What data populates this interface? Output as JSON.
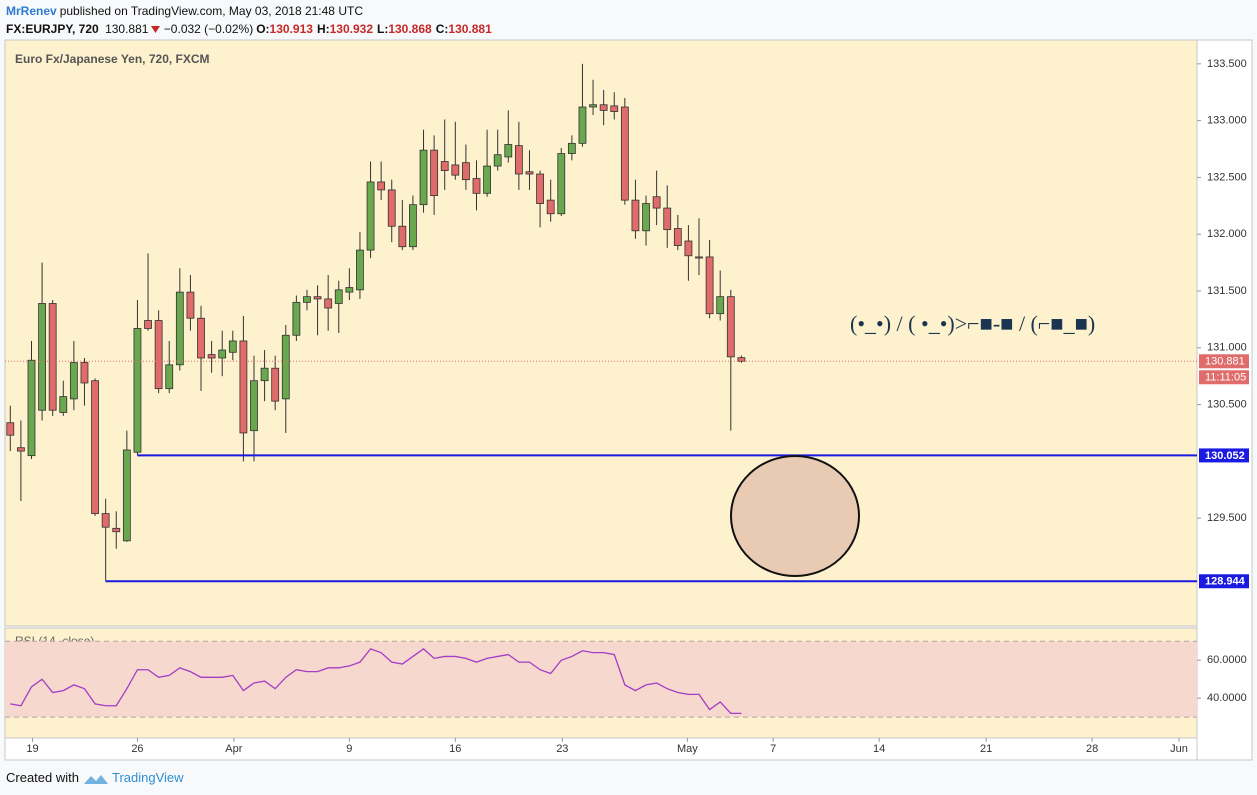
{
  "header": {
    "author": "MrRenev",
    "published": "published on TradingView.com, May 03, 2018 21:48 UTC",
    "symbol": "FX:EURJPY, 720",
    "price": 130.881,
    "change": "−0.032 (−0.02%)",
    "ohlc": [
      {
        "label": "O:",
        "value": 130.913
      },
      {
        "label": "H:",
        "value": 130.932
      },
      {
        "label": "L:",
        "value": 130.868
      },
      {
        "label": "C:",
        "value": 130.881
      }
    ]
  },
  "chart_data": [
    {
      "type": "candlestick",
      "title": "Euro Fx/Japanese Yen, 720, FXCM",
      "up_color": "#69a84f",
      "down_color": "#e06b6b",
      "open": [
        130.34,
        130.12,
        130.05,
        130.45,
        131.39,
        130.43,
        130.55,
        130.87,
        130.71,
        129.54,
        129.41,
        129.3,
        130.08,
        131.24,
        131.24,
        130.64,
        130.85,
        131.49,
        131.26,
        130.94,
        130.91,
        130.96,
        131.06,
        130.27,
        130.71,
        130.82,
        130.55,
        131.11,
        131.4,
        131.45,
        131.43,
        131.39,
        131.49,
        131.51,
        131.86,
        132.46,
        132.39,
        132.07,
        131.89,
        132.26,
        132.74,
        132.64,
        132.61,
        132.63,
        132.49,
        132.36,
        132.6,
        132.68,
        132.78,
        132.55,
        132.53,
        132.3,
        132.18,
        132.71,
        132.8,
        133.12,
        133.14,
        133.13,
        133.12,
        132.3,
        132.03,
        132.33,
        132.23,
        132.05,
        131.94,
        131.8,
        131.8,
        131.3,
        131.45,
        130.913
      ],
      "high": [
        130.49,
        130.36,
        131.06,
        131.75,
        131.42,
        130.71,
        131.06,
        130.91,
        130.73,
        129.67,
        129.56,
        130.27,
        131.42,
        131.83,
        131.33,
        131.06,
        131.7,
        131.64,
        131.37,
        131.06,
        131.15,
        131.15,
        131.28,
        130.93,
        130.98,
        130.93,
        131.2,
        131.46,
        131.51,
        131.55,
        131.64,
        131.59,
        131.7,
        132.02,
        132.64,
        132.64,
        132.48,
        132.3,
        132.34,
        132.92,
        132.87,
        133.01,
        132.99,
        132.79,
        132.65,
        132.92,
        132.92,
        133.09,
        132.99,
        132.74,
        132.56,
        132.48,
        132.76,
        132.87,
        133.5,
        133.36,
        133.27,
        133.25,
        133.2,
        132.48,
        132.34,
        132.56,
        132.43,
        132.17,
        132.08,
        132.14,
        131.95,
        131.68,
        131.51,
        130.932
      ],
      "low": [
        130.09,
        129.65,
        130.02,
        130.36,
        130.4,
        130.4,
        130.45,
        130.49,
        129.52,
        128.944,
        129.23,
        129.29,
        130.052,
        131.15,
        130.6,
        130.6,
        130.8,
        131.15,
        130.62,
        130.78,
        130.75,
        130.89,
        130.0,
        130.0,
        130.53,
        130.45,
        130.25,
        131.06,
        131.33,
        131.11,
        131.15,
        131.13,
        131.42,
        131.43,
        131.79,
        132.3,
        131.93,
        131.86,
        131.86,
        132.19,
        132.17,
        132.39,
        132.48,
        132.39,
        132.21,
        132.33,
        132.56,
        132.63,
        132.39,
        132.39,
        132.06,
        132.11,
        132.16,
        132.65,
        132.77,
        133.05,
        132.96,
        133.01,
        132.26,
        131.96,
        131.9,
        132.08,
        131.88,
        131.86,
        131.59,
        131.64,
        131.26,
        131.24,
        130.27,
        130.868
      ],
      "close": [
        130.23,
        130.09,
        130.89,
        131.39,
        130.45,
        130.57,
        130.87,
        130.69,
        129.54,
        129.42,
        129.38,
        130.1,
        131.17,
        131.17,
        130.64,
        130.85,
        131.49,
        131.26,
        130.91,
        130.91,
        130.98,
        131.06,
        130.25,
        130.71,
        130.82,
        130.53,
        131.11,
        131.4,
        131.45,
        131.43,
        131.35,
        131.51,
        131.53,
        131.86,
        132.46,
        132.39,
        132.07,
        131.89,
        132.26,
        132.74,
        132.34,
        132.56,
        132.52,
        132.48,
        132.36,
        132.6,
        132.7,
        132.79,
        132.53,
        132.53,
        132.27,
        132.18,
        132.71,
        132.8,
        133.12,
        133.14,
        133.09,
        133.08,
        132.3,
        132.03,
        132.27,
        132.23,
        132.04,
        131.9,
        131.81,
        131.79,
        131.3,
        131.45,
        130.92,
        130.881
      ],
      "ylim": [
        128.55,
        133.71
      ],
      "yticks": [
        {
          "value": 129.5,
          "label": "129.500"
        },
        {
          "value": 130.5,
          "label": "130.500"
        },
        {
          "value": 131,
          "label": "131.000"
        },
        {
          "value": 131.5,
          "label": "131.500"
        },
        {
          "value": 132,
          "label": "132.000"
        },
        {
          "value": 132.5,
          "label": "132.500"
        },
        {
          "value": 133,
          "label": "133.000"
        },
        {
          "value": 133.5,
          "label": "133.500"
        }
      ],
      "xlim": [
        -0.5,
        112
      ],
      "xticks": [
        {
          "value": 2.1,
          "label": "19"
        },
        {
          "value": 12,
          "label": "26"
        },
        {
          "value": 21.1,
          "label": "Apr"
        },
        {
          "value": 32,
          "label": "9"
        },
        {
          "value": 42,
          "label": "16"
        },
        {
          "value": 52.1,
          "label": "23"
        },
        {
          "value": 63.9,
          "label": "May"
        },
        {
          "value": 72,
          "label": "7"
        },
        {
          "value": 82,
          "label": "14"
        },
        {
          "value": 92.1,
          "label": "21"
        },
        {
          "value": 102.1,
          "label": "28"
        },
        {
          "value": 110.3,
          "label": "Jun"
        }
      ],
      "levels": [
        130.052,
        128.944
      ],
      "level_color": "#1a1ae0",
      "last_price": 130.881,
      "countdown": "11:11:05",
      "annotation": "(•_•) / ( •_•)>⌐■-■ / (⌐■_■)"
    },
    {
      "type": "line",
      "title": "RSI (14, close)",
      "color": "#a43cc4",
      "values": [
        37,
        36,
        46,
        50,
        43,
        44,
        47,
        45,
        37,
        36,
        36,
        45,
        55,
        55,
        51,
        52,
        56,
        54,
        51,
        51,
        51,
        52,
        44,
        48,
        49,
        45,
        51,
        55,
        54,
        54,
        56,
        56,
        57,
        59,
        66,
        64,
        59,
        58,
        62,
        66,
        61,
        62,
        62,
        61,
        59,
        61,
        62,
        63,
        59,
        59,
        55,
        53,
        60,
        62,
        65,
        64,
        64,
        63,
        47,
        44,
        47,
        48,
        45,
        43,
        42,
        42,
        34,
        38,
        32,
        32
      ],
      "ylim": [
        19,
        77
      ],
      "yticks": [
        {
          "value": 40,
          "label": "40.0000"
        },
        {
          "value": 60,
          "label": "60.0000"
        }
      ],
      "bands": [
        30,
        70
      ]
    }
  ]
}
